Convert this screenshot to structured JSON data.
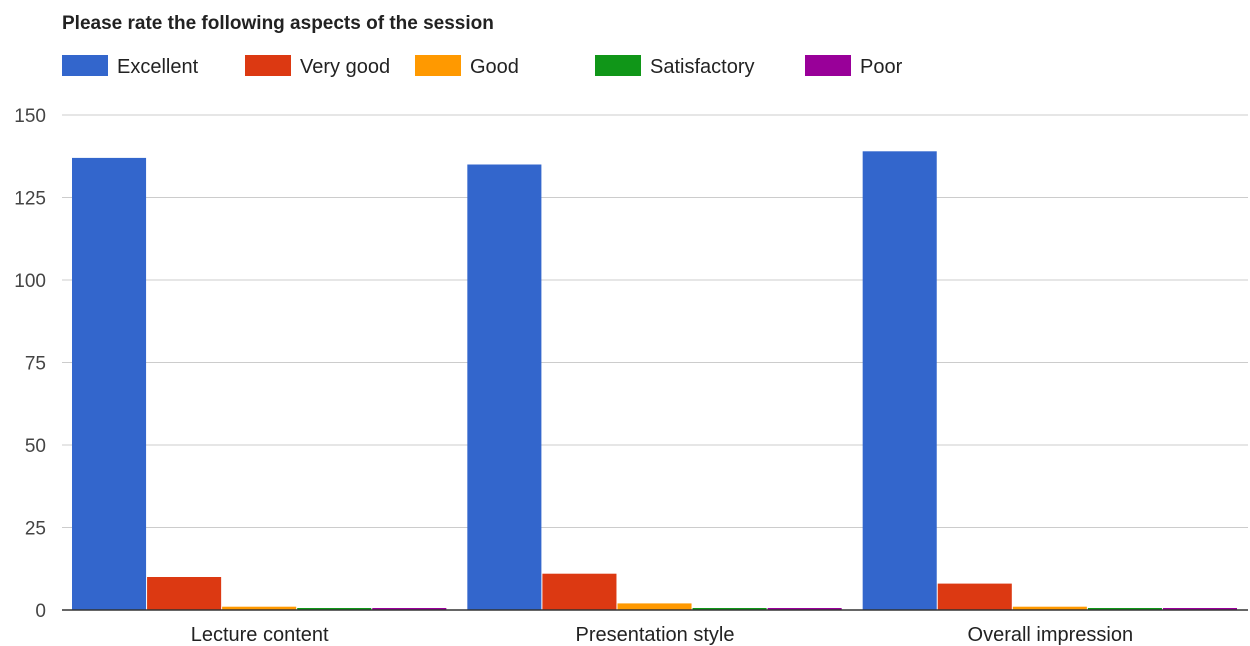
{
  "chart_data": {
    "type": "bar",
    "title": "Please rate the following aspects of the session",
    "xlabel": "",
    "ylabel": "",
    "categories": [
      "Lecture content",
      "Presentation style",
      "Overall impression"
    ],
    "series": [
      {
        "name": "Excellent",
        "color": "#3366cc",
        "values": [
          137,
          135,
          139
        ]
      },
      {
        "name": "Very good",
        "color": "#dc3912",
        "values": [
          10,
          11,
          8
        ]
      },
      {
        "name": "Good",
        "color": "#ff9900",
        "values": [
          1,
          2,
          1
        ]
      },
      {
        "name": "Satisfactory",
        "color": "#109618",
        "values": [
          0,
          0,
          0
        ]
      },
      {
        "name": "Poor",
        "color": "#990099",
        "values": [
          0,
          0,
          0
        ]
      }
    ],
    "ylim": [
      0,
      150
    ],
    "yticks": [
      0,
      25,
      50,
      75,
      100,
      125,
      150
    ],
    "grid": true,
    "legend_position": "top-left"
  }
}
